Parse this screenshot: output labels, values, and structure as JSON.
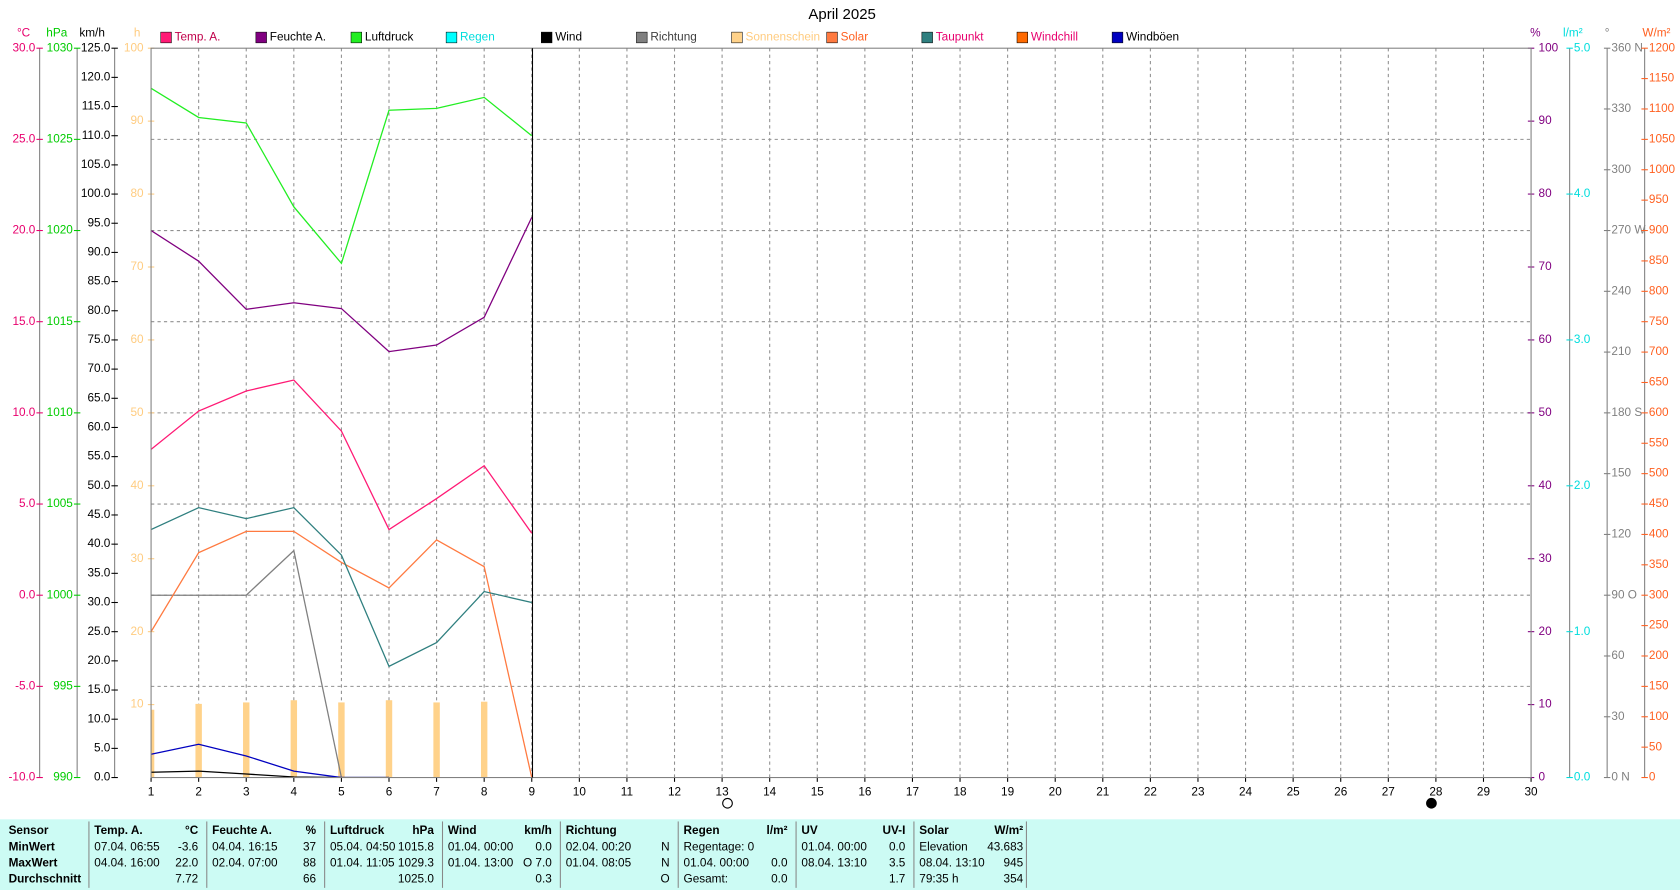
{
  "chart_data": {
    "type": "line",
    "title": "April 2025",
    "x": [
      1,
      2,
      3,
      4,
      5,
      6,
      7,
      8,
      9
    ],
    "xlim": [
      1,
      30
    ],
    "xticks": [
      1,
      2,
      3,
      4,
      5,
      6,
      7,
      8,
      9,
      10,
      11,
      12,
      13,
      14,
      15,
      16,
      17,
      18,
      19,
      20,
      21,
      22,
      23,
      24,
      25,
      26,
      27,
      28,
      29,
      30
    ],
    "grid": true,
    "axes": [
      {
        "label": "°C",
        "color": "#e8006e",
        "ylim": [
          -10,
          30
        ],
        "yticks": [
          {
            "value": -10,
            "label": "-10.0"
          },
          {
            "value": -5,
            "label": "-5.0"
          },
          {
            "value": 0,
            "label": "0.0"
          },
          {
            "value": 5,
            "label": "5.0"
          },
          {
            "value": 10,
            "label": "10.0"
          },
          {
            "value": 15,
            "label": "15.0"
          },
          {
            "value": 20,
            "label": "20.0"
          },
          {
            "value": 25,
            "label": "25.0"
          },
          {
            "value": 30,
            "label": "30.0"
          }
        ]
      },
      {
        "label": "hPa",
        "color": "#00cc00",
        "ylim": [
          990,
          1030
        ],
        "yticks": [
          990,
          995,
          1000,
          1005,
          1010,
          1015,
          1020,
          1025,
          1030
        ]
      },
      {
        "label": "km/h",
        "color": "#000000",
        "ylim": [
          0,
          125
        ],
        "yticks": [
          {
            "value": 0,
            "label": "0.0"
          },
          {
            "value": 5,
            "label": "5.0"
          },
          {
            "value": 10,
            "label": "10.0"
          },
          {
            "value": 15,
            "label": "15.0"
          },
          {
            "value": 20,
            "label": "20.0"
          },
          {
            "value": 25,
            "label": "25.0"
          },
          {
            "value": 30,
            "label": "30.0"
          },
          {
            "value": 35,
            "label": "35.0"
          },
          {
            "value": 40,
            "label": "40.0"
          },
          {
            "value": 45,
            "label": "45.0"
          },
          {
            "value": 50,
            "label": "50.0"
          },
          {
            "value": 55,
            "label": "55.0"
          },
          {
            "value": 60,
            "label": "60.0"
          },
          {
            "value": 65,
            "label": "65.0"
          },
          {
            "value": 70,
            "label": "70.0"
          },
          {
            "value": 75,
            "label": "75.0"
          },
          {
            "value": 80,
            "label": "80.0"
          },
          {
            "value": 85,
            "label": "85.0"
          },
          {
            "value": 90,
            "label": "90.0"
          },
          {
            "value": 95,
            "label": "95.0"
          },
          {
            "value": 100,
            "label": "100.0"
          },
          {
            "value": 105,
            "label": "105.0"
          },
          {
            "value": 110,
            "label": "110.0"
          },
          {
            "value": 115,
            "label": "115.0"
          },
          {
            "value": 120,
            "label": "120.0"
          },
          {
            "value": 125,
            "label": "125.0"
          }
        ]
      },
      {
        "label": "h",
        "color": "#ffcc80",
        "ylim": [
          0,
          100
        ],
        "yticks": [
          10,
          20,
          30,
          40,
          50,
          60,
          70,
          80,
          90,
          100
        ]
      },
      {
        "label": "%",
        "color": "#800080",
        "ylim": [
          0,
          100
        ],
        "yticks": [
          0,
          10,
          20,
          30,
          40,
          50,
          60,
          70,
          80,
          90,
          100
        ]
      },
      {
        "label": "l/m²",
        "color": "#00dddd",
        "ylim": [
          0,
          5
        ],
        "yticks": [
          {
            "value": 0,
            "label": "0.0"
          },
          {
            "value": 1,
            "label": "1.0"
          },
          {
            "value": 2,
            "label": "2.0"
          },
          {
            "value": 3,
            "label": "3.0"
          },
          {
            "value": 4,
            "label": "4.0"
          },
          {
            "value": 5,
            "label": "5.0"
          }
        ]
      },
      {
        "label": "°",
        "color": "#808080",
        "ylim": [
          0,
          360
        ],
        "yticks": [
          {
            "value": 0,
            "label": "0 N"
          },
          30,
          60,
          {
            "value": 90,
            "label": "90 O"
          },
          120,
          150,
          {
            "value": 180,
            "label": "180 S"
          },
          210,
          240,
          {
            "value": 270,
            "label": "270 W"
          },
          300,
          330,
          {
            "value": 360,
            "label": "360 N"
          }
        ]
      },
      {
        "label": "W/m²",
        "color": "#ff6020",
        "ylim": [
          0,
          1200
        ],
        "yticks": [
          0,
          50,
          100,
          150,
          200,
          250,
          300,
          350,
          400,
          450,
          500,
          550,
          600,
          650,
          700,
          750,
          800,
          850,
          900,
          950,
          1000,
          1050,
          1100,
          1150,
          1200
        ]
      }
    ],
    "series": [
      {
        "name": "Temp. A.",
        "color": "#ff1a75",
        "label_color": "#c0004a",
        "axis": 0,
        "values": [
          8.0,
          10.1,
          11.2,
          11.8,
          9.0,
          3.6,
          5.3,
          7.1,
          3.4
        ]
      },
      {
        "name": "Feuchte A.",
        "color": "#800080",
        "label_color": "#000000",
        "axis": 4,
        "values": [
          75.0,
          70.8,
          64.2,
          65.1,
          64.3,
          58.4,
          59.3,
          63.1,
          76.8
        ]
      },
      {
        "name": "Luftdruck",
        "color": "#22ee22",
        "label_color": "#000000",
        "axis": 1,
        "values": [
          1027.8,
          1026.2,
          1025.9,
          1021.3,
          1018.2,
          1026.6,
          1026.7,
          1027.3,
          1025.2
        ]
      },
      {
        "name": "Regen",
        "color": "#00ffff",
        "label_color": "#00dddd",
        "axis": 5,
        "values": [
          null,
          null,
          null,
          null,
          null,
          null,
          null,
          null,
          null
        ]
      },
      {
        "name": "Wind",
        "color": "#000000",
        "label_color": "#000000",
        "axis": 2,
        "values": [
          0.9,
          1.1,
          0.6,
          0.1,
          0.0,
          0.0,
          null,
          null,
          null
        ]
      },
      {
        "name": "Richtung",
        "color": "#808080",
        "label_color": "#404040",
        "axis": 6,
        "values": [
          90,
          90,
          90,
          112,
          0,
          null,
          null,
          null,
          null
        ]
      },
      {
        "name": "Sonnenschein",
        "color": "#ffd28a",
        "label_color": "#ffcc80",
        "axis": 3,
        "style": "bar",
        "values": [
          9.3,
          10.1,
          10.3,
          10.6,
          10.3,
          10.6,
          10.3,
          10.4,
          null
        ]
      },
      {
        "name": "Solar",
        "color": "#ff7a40",
        "label_color": "#ff6020",
        "axis": 7,
        "values": [
          240,
          370,
          405,
          405,
          354,
          312,
          391,
          347,
          0
        ]
      },
      {
        "name": "Taupunkt",
        "color": "#2f7f7f",
        "label_color": "#e8006e",
        "axis": 0,
        "values": [
          3.6,
          4.8,
          4.2,
          4.8,
          2.2,
          -3.9,
          -2.6,
          0.2,
          -0.4
        ]
      },
      {
        "name": "Windchill",
        "color": "#ff6a00",
        "label_color": "#e8006e",
        "axis": 0,
        "values": [
          null,
          null,
          null,
          null,
          null,
          null,
          null,
          null,
          null
        ]
      },
      {
        "name": "Windböen",
        "color": "#0000c0",
        "label_color": "#000000",
        "axis": 2,
        "values": [
          4.0,
          5.7,
          3.7,
          1.1,
          0.0,
          0.0,
          null,
          null,
          null
        ]
      }
    ]
  },
  "table": {
    "row_labels": [
      "Sensor",
      "MinWert",
      "MaxWert",
      "Durchschnitt"
    ],
    "groups": [
      {
        "name": "Temp. A.",
        "unit": "°C",
        "rows": [
          [
            "07.04. 06:55",
            "-3.6"
          ],
          [
            "04.04. 16:00",
            "22.0"
          ],
          [
            null,
            "7.72"
          ]
        ]
      },
      {
        "name": "Feuchte A.",
        "unit": "%",
        "rows": [
          [
            "04.04. 16:15",
            "37"
          ],
          [
            "02.04. 07:00",
            "88"
          ],
          [
            null,
            "66"
          ]
        ]
      },
      {
        "name": "Luftdruck",
        "unit": "hPa",
        "rows": [
          [
            "05.04. 04:50",
            "1015.8"
          ],
          [
            "01.04. 11:05",
            "1029.3"
          ],
          [
            null,
            "1025.0"
          ]
        ]
      },
      {
        "name": "Wind",
        "unit": "km/h",
        "rows": [
          [
            "01.04. 00:00",
            "0.0"
          ],
          [
            "01.04. 13:00",
            "O 7.0"
          ],
          [
            null,
            "0.3"
          ]
        ]
      },
      {
        "name": "Richtung",
        "rows": [
          [
            "02.04. 00:20",
            "N"
          ],
          [
            "01.04. 08:05",
            "N"
          ],
          [
            null,
            "O"
          ]
        ]
      },
      {
        "name": "Regen",
        "unit": "l/m²",
        "rows": [
          [
            "Regentage: 0",
            null
          ],
          [
            "01.04. 00:00",
            "0.0"
          ],
          [
            "Gesamt:",
            "0.0"
          ]
        ]
      },
      {
        "name": "UV",
        "unit": "UV-I",
        "rows": [
          [
            "01.04. 00:00",
            "0.0"
          ],
          [
            "08.04. 13:10",
            "3.5"
          ],
          [
            null,
            "1.7"
          ]
        ]
      },
      {
        "name": "Solar",
        "unit": "W/m²",
        "rows": [
          [
            "Elevation",
            "43.683"
          ],
          [
            "08.04. 13:10",
            "945"
          ],
          [
            "79:35 h",
            "354"
          ]
        ]
      }
    ]
  }
}
